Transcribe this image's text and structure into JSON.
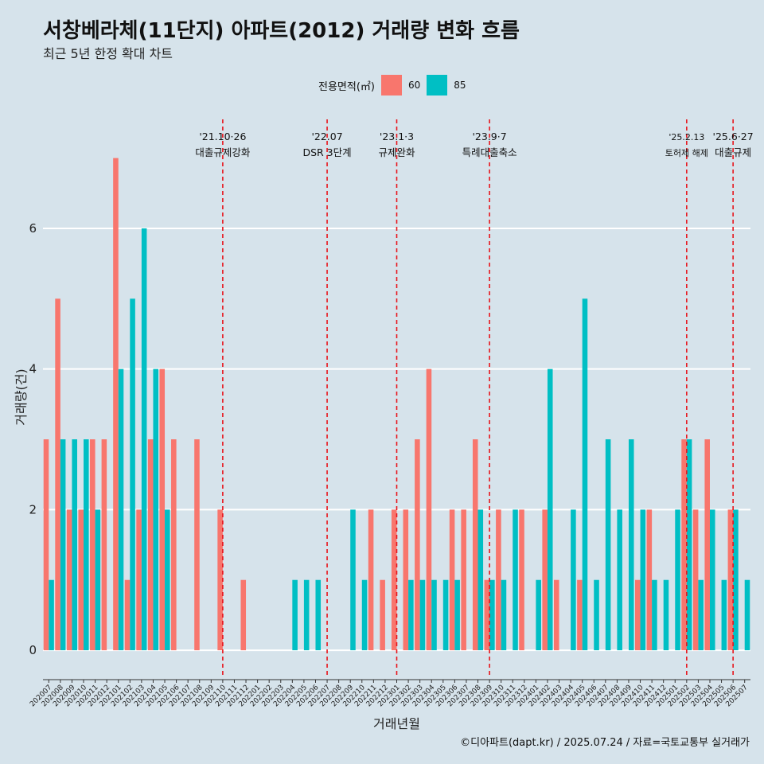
{
  "title": "서창베라체(11단지) 아파트(2012) 거래량 변화 흐름",
  "subtitle": "최근 5년 한정 확대 차트",
  "legend": {
    "title": "전용면적(㎡)",
    "items": [
      {
        "label": "60",
        "color": "#f8766d"
      },
      {
        "label": "85",
        "color": "#00bfc4"
      }
    ]
  },
  "caption": "©디아파트(dapt.kr) / 2025.07.24 / 자료=국토교통부 실거래가",
  "chart_data": {
    "type": "bar",
    "xlabel": "거래년월",
    "ylabel": "거래량(건)",
    "ylim": [
      -0.35,
      7.55
    ],
    "yticks": [
      0,
      2,
      4,
      6
    ],
    "categories": [
      "202007",
      "202008",
      "202009",
      "202010",
      "202011",
      "202012",
      "202101",
      "202102",
      "202103",
      "202104",
      "202105",
      "202106",
      "202107",
      "202108",
      "202109",
      "202110",
      "202111",
      "202112",
      "202201",
      "202202",
      "202203",
      "202204",
      "202205",
      "202206",
      "202207",
      "202208",
      "202209",
      "202210",
      "202211",
      "202212",
      "202301",
      "202302",
      "202303",
      "202304",
      "202305",
      "202306",
      "202307",
      "202308",
      "202309",
      "202310",
      "202311",
      "202312",
      "202401",
      "202402",
      "202403",
      "202404",
      "202405",
      "202406",
      "202407",
      "202408",
      "202409",
      "202410",
      "202411",
      "202412",
      "202501",
      "202502",
      "202503",
      "202504",
      "202505",
      "202506",
      "202507"
    ],
    "series": [
      {
        "name": "60",
        "color": "#f8766d",
        "values": [
          3,
          5,
          2,
          2,
          3,
          3,
          7,
          1,
          2,
          3,
          4,
          3,
          0,
          3,
          0,
          2,
          0,
          1,
          0,
          0,
          0,
          0,
          0,
          0,
          0,
          0,
          0,
          0,
          2,
          1,
          2,
          2,
          3,
          4,
          0,
          2,
          2,
          3,
          1,
          2,
          0,
          2,
          0,
          2,
          1,
          0,
          1,
          0,
          0,
          0,
          0,
          1,
          2,
          0,
          0,
          3,
          2,
          3,
          0,
          2,
          0
        ]
      },
      {
        "name": "85",
        "color": "#00bfc4",
        "values": [
          1,
          3,
          3,
          3,
          2,
          0,
          4,
          5,
          6,
          4,
          2,
          0,
          0,
          0,
          0,
          0,
          0,
          0,
          0,
          0,
          0,
          1,
          1,
          1,
          0,
          0,
          2,
          1,
          0,
          0,
          0,
          1,
          1,
          1,
          1,
          1,
          0,
          2,
          1,
          1,
          2,
          0,
          1,
          4,
          0,
          2,
          5,
          1,
          3,
          2,
          3,
          2,
          1,
          1,
          2,
          3,
          1,
          2,
          1,
          2,
          1
        ]
      }
    ],
    "events": [
      {
        "category": "202110",
        "date": "'21.10·26",
        "label": "대출규제강화"
      },
      {
        "category": "202207",
        "date": "'22.07",
        "label": "DSR 3단계"
      },
      {
        "category": "202301",
        "date": "'23.1·3",
        "label": "규제완화"
      },
      {
        "category": "202309",
        "date": "'23.9·7",
        "label": "특례대출축소"
      },
      {
        "category": "202502",
        "date": "'25.2.13",
        "label": "토허제 해제"
      },
      {
        "category": "202506",
        "date": "'25.6·27",
        "label": "대출규제"
      }
    ]
  }
}
